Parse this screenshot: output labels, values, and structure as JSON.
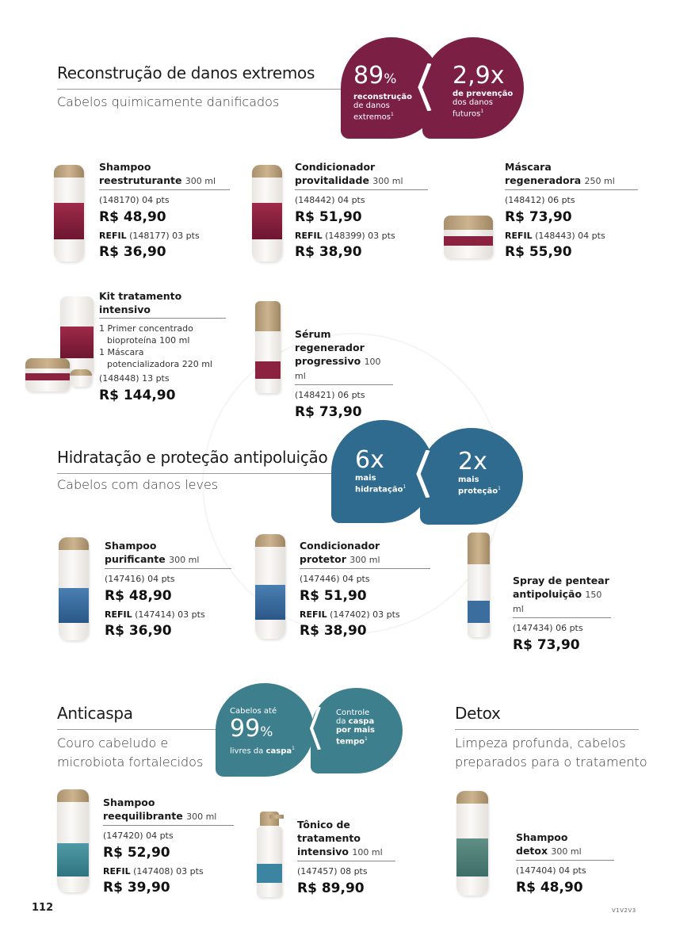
{
  "sections": {
    "extreme": {
      "title": "Reconstrução de danos extremos",
      "subtitle": "Cabelos quimicamente danificados",
      "color": "#7c1f45",
      "badge1": {
        "big": "89",
        "unit": "%",
        "l1": "reconstrução",
        "l2": "de danos",
        "l3": "extremos",
        "sup": "1"
      },
      "badge2": {
        "big": "2,9x",
        "l1": "de prevenção",
        "l2": "dos danos",
        "l3": "futuros",
        "sup": "1"
      }
    },
    "hydration": {
      "title": "Hidratação e proteção antipoluição",
      "subtitle": "Cabelos com danos leves",
      "color": "#2f6b8f",
      "badge1": {
        "big": "6x",
        "l1": "mais",
        "l2": "hidratação",
        "sup": "1"
      },
      "badge2": {
        "big": "2x",
        "l1": "mais",
        "l2": "proteção",
        "sup": "1"
      }
    },
    "anticaspa": {
      "title": "Anticaspa",
      "subtitle1": "Couro cabeludo e",
      "subtitle2": "microbiota fortalecidos",
      "color": "#3e7f8d",
      "badge1": {
        "pre": "Cabelos até",
        "big": "99",
        "unit": "%",
        "l1a": "livres da ",
        "l1b": "caspa",
        "sup": "1"
      },
      "badge2": {
        "l1": "Controle",
        "l2a": "da ",
        "l2b": "caspa",
        "l3": "por mais",
        "l4": "tempo",
        "sup": "1"
      }
    },
    "detox": {
      "title": "Detox",
      "subtitle1": "Limpeza profunda, cabelos",
      "subtitle2": "preparados para o tratamento"
    }
  },
  "products": {
    "p1": {
      "name1": "Shampoo",
      "name2": "reestruturante",
      "vol": "300 ml",
      "code": "(148170) 04 pts",
      "price": "R$ 48,90",
      "refill_label": "REFIL",
      "refill_code": "(148177) 03 pts",
      "refill_price": "R$ 36,90"
    },
    "p2": {
      "name1": "Condicionador",
      "name2": "provitalidade",
      "vol": "300 ml",
      "code": "(148442) 04 pts",
      "price": "R$ 51,90",
      "refill_label": "REFIL",
      "refill_code": "(148399) 03 pts",
      "refill_price": "R$ 38,90"
    },
    "p3": {
      "name1": "Máscara",
      "name2": "regeneradora",
      "vol": "250 ml",
      "code": "(148412) 06 pts",
      "price": "R$ 73,90",
      "refill_label": "REFIL",
      "refill_code": "(148443) 04 pts",
      "refill_price": "R$ 55,90"
    },
    "p4": {
      "name1": "Kit tratamento intensivo",
      "l1": "1 Primer concentrado",
      "l2a": "bioproteína",
      "l2b": "100 ml",
      "l3": "1 Máscara",
      "l4a": "potencializadora",
      "l4b": "220 ml",
      "code": "(148448) 13 pts",
      "price": "R$ 144,90"
    },
    "p5": {
      "name1": "Sérum regenerador",
      "name2": "progressivo",
      "vol": "100 ml",
      "code": "(148421) 06 pts",
      "price": "R$ 73,90"
    },
    "p6": {
      "name1": "Shampoo",
      "name2": "purificante",
      "vol": "300 ml",
      "code": "(147416) 04 pts",
      "price": "R$ 48,90",
      "refill_label": "REFIL",
      "refill_code": "(147414) 03 pts",
      "refill_price": "R$ 36,90"
    },
    "p7": {
      "name1": "Condicionador",
      "name2": "protetor",
      "vol": "300 ml",
      "code": "(147446) 04 pts",
      "price": "R$ 51,90",
      "refill_label": "REFIL",
      "refill_code": "(147402) 03 pts",
      "refill_price": "R$ 38,90"
    },
    "p8": {
      "name1": "Spray de pentear",
      "name2": "antipoluição",
      "vol": "150 ml",
      "code": "(147434) 06 pts",
      "price": "R$ 73,90"
    },
    "p9": {
      "name1": "Shampoo",
      "name2": "reequilibrante",
      "vol": "300 ml",
      "code": "(147420) 04 pts",
      "price": "R$ 52,90",
      "refill_label": "REFIL",
      "refill_code": "(147408) 03 pts",
      "refill_price": "R$ 39,90"
    },
    "p10": {
      "name1": "Tônico de",
      "name2": "tratamento",
      "name3": "intensivo",
      "vol": "100 ml",
      "code": "(147457) 08 pts",
      "price": "R$ 89,90"
    },
    "p11": {
      "name1": "Shampoo",
      "name2": "detox",
      "vol": "300 ml",
      "code": "(147404) 04 pts",
      "price": "R$ 48,90"
    }
  },
  "footer": {
    "page_number": "112",
    "ref": "V1V2V3"
  }
}
